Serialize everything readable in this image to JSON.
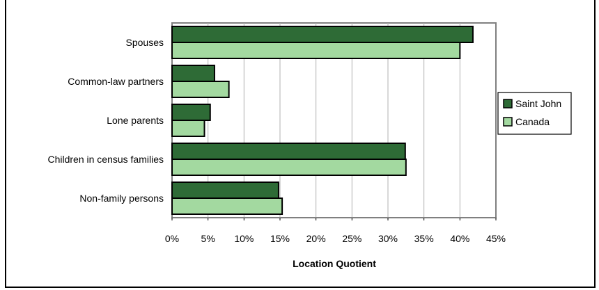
{
  "title": "",
  "chart_data": {
    "type": "bar",
    "orientation": "horizontal",
    "categories": [
      "Spouses",
      "Common-law partners",
      "Lone parents",
      "Children in census families",
      "Non-family persons"
    ],
    "series": [
      {
        "name": "Saint John",
        "values": [
          41.8,
          5.9,
          5.3,
          32.4,
          14.8
        ],
        "color": "#2e6b36"
      },
      {
        "name": "Canada",
        "values": [
          40.0,
          7.9,
          4.5,
          32.5,
          15.3
        ],
        "color": "#a3d9a0"
      }
    ],
    "xlabel": "Location Quotient",
    "xlim": [
      0,
      45
    ],
    "xticks": [
      "0%",
      "5%",
      "10%",
      "15%",
      "20%",
      "25%",
      "30%",
      "35%",
      "40%",
      "45%"
    ],
    "grid": true,
    "legend": "right"
  }
}
